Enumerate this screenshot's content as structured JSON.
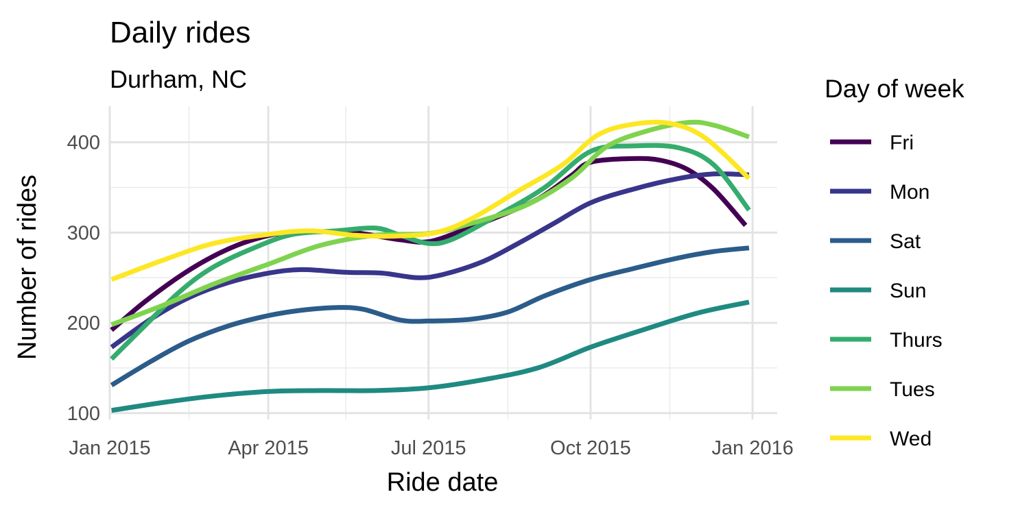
{
  "chart_data": {
    "type": "line",
    "title": "Daily rides",
    "subtitle": "Durham, NC",
    "xlabel": "Ride date",
    "ylabel": "Number of rides",
    "xlim": [
      "2015-01-01",
      "2016-01-15"
    ],
    "ylim": [
      93,
      440
    ],
    "x_ticks": [
      "2015-01-01",
      "2015-04-01",
      "2015-07-01",
      "2015-10-01",
      "2016-01-01"
    ],
    "x_tick_labels": [
      "Jan 2015",
      "Apr 2015",
      "Jul 2015",
      "Oct 2015",
      "Jan 2016"
    ],
    "x_minor_ticks": [
      "2015-02-15",
      "2015-05-15",
      "2015-08-15",
      "2015-11-15"
    ],
    "y_ticks": [
      100,
      200,
      300,
      400
    ],
    "y_tick_labels": [
      "100",
      "200",
      "300",
      "400"
    ],
    "y_minor_ticks": [
      150,
      250,
      350
    ],
    "grid": true,
    "legend": {
      "title": "Day of week",
      "position": "right"
    },
    "series": [
      {
        "name": "Fri",
        "color": "#440154",
        "points": [
          [
            "2015-01-02",
            192
          ],
          [
            "2015-01-20",
            222
          ],
          [
            "2015-02-10",
            252
          ],
          [
            "2015-03-01",
            274
          ],
          [
            "2015-03-20",
            290
          ],
          [
            "2015-04-10",
            300
          ],
          [
            "2015-05-01",
            301
          ],
          [
            "2015-05-20",
            300
          ],
          [
            "2015-06-15",
            292
          ],
          [
            "2015-07-01",
            290
          ],
          [
            "2015-07-20",
            302
          ],
          [
            "2015-08-10",
            318
          ],
          [
            "2015-09-01",
            337
          ],
          [
            "2015-09-20",
            363
          ],
          [
            "2015-10-01",
            378
          ],
          [
            "2015-10-25",
            382
          ],
          [
            "2015-11-10",
            380
          ],
          [
            "2015-11-25",
            370
          ],
          [
            "2015-12-10",
            348
          ],
          [
            "2015-12-28",
            308
          ]
        ]
      },
      {
        "name": "Mon",
        "color": "#39358B",
        "points": [
          [
            "2015-01-02",
            173
          ],
          [
            "2015-01-25",
            205
          ],
          [
            "2015-02-15",
            228
          ],
          [
            "2015-03-10",
            245
          ],
          [
            "2015-04-01",
            255
          ],
          [
            "2015-04-20",
            259
          ],
          [
            "2015-05-15",
            256
          ],
          [
            "2015-06-05",
            255
          ],
          [
            "2015-06-25",
            250
          ],
          [
            "2015-07-10",
            254
          ],
          [
            "2015-08-01",
            268
          ],
          [
            "2015-08-20",
            287
          ],
          [
            "2015-09-10",
            310
          ],
          [
            "2015-10-01",
            333
          ],
          [
            "2015-10-25",
            348
          ],
          [
            "2015-11-20",
            360
          ],
          [
            "2015-12-10",
            365
          ],
          [
            "2015-12-30",
            364
          ]
        ]
      },
      {
        "name": "Sat",
        "color": "#2B5C8A",
        "points": [
          [
            "2015-01-02",
            131
          ],
          [
            "2015-01-25",
            158
          ],
          [
            "2015-02-15",
            180
          ],
          [
            "2015-03-10",
            197
          ],
          [
            "2015-04-01",
            208
          ],
          [
            "2015-04-20",
            214
          ],
          [
            "2015-05-10",
            217
          ],
          [
            "2015-05-25",
            215
          ],
          [
            "2015-06-15",
            203
          ],
          [
            "2015-07-01",
            202
          ],
          [
            "2015-07-25",
            204
          ],
          [
            "2015-08-15",
            212
          ],
          [
            "2015-09-05",
            230
          ],
          [
            "2015-10-01",
            248
          ],
          [
            "2015-10-25",
            260
          ],
          [
            "2015-11-20",
            272
          ],
          [
            "2015-12-10",
            279
          ],
          [
            "2015-12-30",
            283
          ]
        ]
      },
      {
        "name": "Sun",
        "color": "#1F8A81",
        "points": [
          [
            "2015-01-02",
            103
          ],
          [
            "2015-02-01",
            112
          ],
          [
            "2015-03-01",
            119
          ],
          [
            "2015-04-01",
            124
          ],
          [
            "2015-05-01",
            125
          ],
          [
            "2015-06-01",
            125
          ],
          [
            "2015-07-01",
            128
          ],
          [
            "2015-08-01",
            137
          ],
          [
            "2015-09-01",
            150
          ],
          [
            "2015-10-01",
            173
          ],
          [
            "2015-11-01",
            193
          ],
          [
            "2015-12-01",
            211
          ],
          [
            "2015-12-30",
            223
          ]
        ]
      },
      {
        "name": "Thurs",
        "color": "#35AC6D",
        "points": [
          [
            "2015-01-02",
            160
          ],
          [
            "2015-01-20",
            195
          ],
          [
            "2015-02-10",
            235
          ],
          [
            "2015-03-01",
            262
          ],
          [
            "2015-03-25",
            284
          ],
          [
            "2015-04-15",
            298
          ],
          [
            "2015-05-10",
            302
          ],
          [
            "2015-06-01",
            305
          ],
          [
            "2015-06-15",
            297
          ],
          [
            "2015-07-01",
            288
          ],
          [
            "2015-07-15",
            293
          ],
          [
            "2015-08-10",
            320
          ],
          [
            "2015-09-05",
            350
          ],
          [
            "2015-10-01",
            390
          ],
          [
            "2015-10-25",
            396
          ],
          [
            "2015-11-20",
            394
          ],
          [
            "2015-12-10",
            375
          ],
          [
            "2015-12-30",
            325
          ]
        ]
      },
      {
        "name": "Tues",
        "color": "#7FD34E",
        "points": [
          [
            "2015-01-02",
            198
          ],
          [
            "2015-02-01",
            220
          ],
          [
            "2015-03-01",
            243
          ],
          [
            "2015-04-01",
            265
          ],
          [
            "2015-05-01",
            286
          ],
          [
            "2015-06-01",
            297
          ],
          [
            "2015-07-01",
            299
          ],
          [
            "2015-07-25",
            310
          ],
          [
            "2015-08-25",
            330
          ],
          [
            "2015-09-20",
            360
          ],
          [
            "2015-10-10",
            395
          ],
          [
            "2015-11-01",
            412
          ],
          [
            "2015-11-25",
            422
          ],
          [
            "2015-12-10",
            419
          ],
          [
            "2015-12-30",
            406
          ]
        ]
      },
      {
        "name": "Wed",
        "color": "#FDE725",
        "points": [
          [
            "2015-01-02",
            248
          ],
          [
            "2015-02-01",
            270
          ],
          [
            "2015-03-01",
            288
          ],
          [
            "2015-04-01",
            298
          ],
          [
            "2015-04-25",
            302
          ],
          [
            "2015-05-20",
            297
          ],
          [
            "2015-06-10",
            296
          ],
          [
            "2015-07-05",
            300
          ],
          [
            "2015-07-25",
            315
          ],
          [
            "2015-08-20",
            345
          ],
          [
            "2015-09-15",
            375
          ],
          [
            "2015-10-05",
            408
          ],
          [
            "2015-10-25",
            420
          ],
          [
            "2015-11-15",
            421
          ],
          [
            "2015-12-05",
            405
          ],
          [
            "2015-12-30",
            360
          ]
        ]
      }
    ]
  }
}
